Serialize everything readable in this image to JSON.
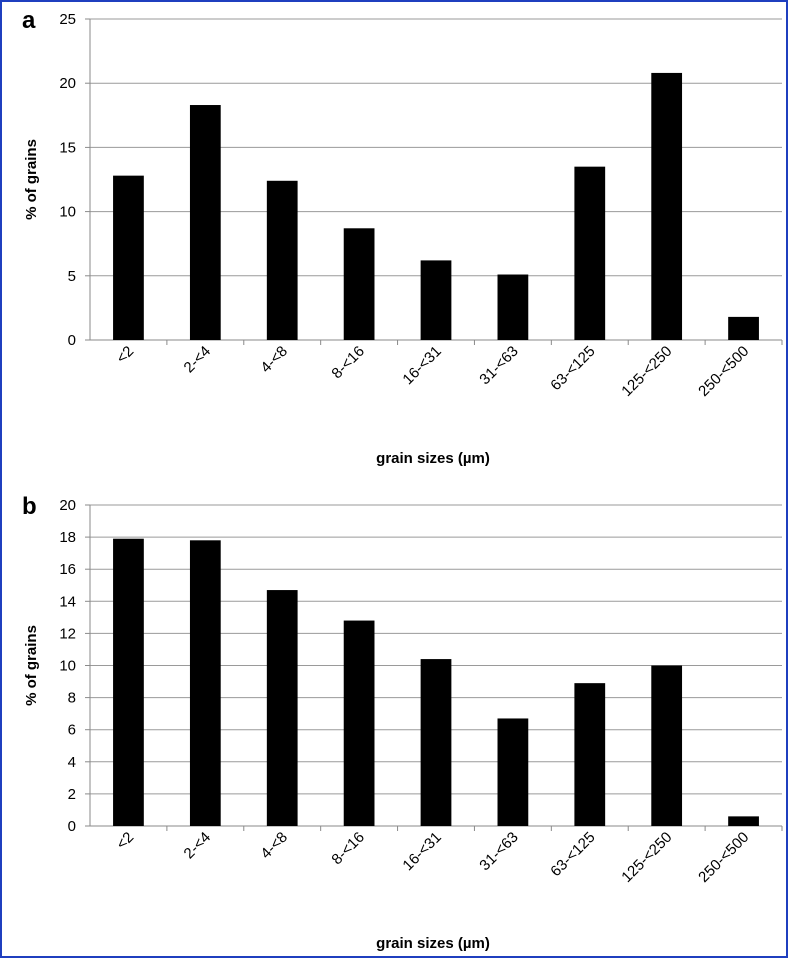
{
  "chart_data": [
    {
      "panel": "a",
      "type": "bar",
      "categories": [
        "<2",
        "2-<4",
        "4-<8",
        "8-<16",
        "16-<31",
        "31-<63",
        "63-<125",
        "125-<250",
        "250-<500"
      ],
      "values": [
        12.8,
        18.3,
        12.4,
        8.7,
        6.2,
        5.1,
        13.5,
        20.8,
        1.8
      ],
      "xlabel": "grain sizes (µm)",
      "ylabel": "% of grains",
      "ylim": [
        0,
        25
      ],
      "yticks": [
        0,
        5,
        10,
        15,
        20,
        25
      ],
      "grid": true,
      "bar_color": "#000000"
    },
    {
      "panel": "b",
      "type": "bar",
      "categories": [
        "<2",
        "2-<4",
        "4-<8",
        "8-<16",
        "16-<31",
        "31-<63",
        "63-<125",
        "125-<250",
        "250-<500"
      ],
      "values": [
        17.9,
        17.8,
        14.7,
        12.8,
        10.4,
        6.7,
        8.9,
        10.0,
        0.6
      ],
      "xlabel": "grain sizes (µm)",
      "ylabel": "% of grains",
      "ylim": [
        0,
        20
      ],
      "yticks": [
        0,
        2,
        4,
        6,
        8,
        10,
        12,
        14,
        16,
        18,
        20
      ],
      "grid": true,
      "bar_color": "#000000"
    }
  ]
}
